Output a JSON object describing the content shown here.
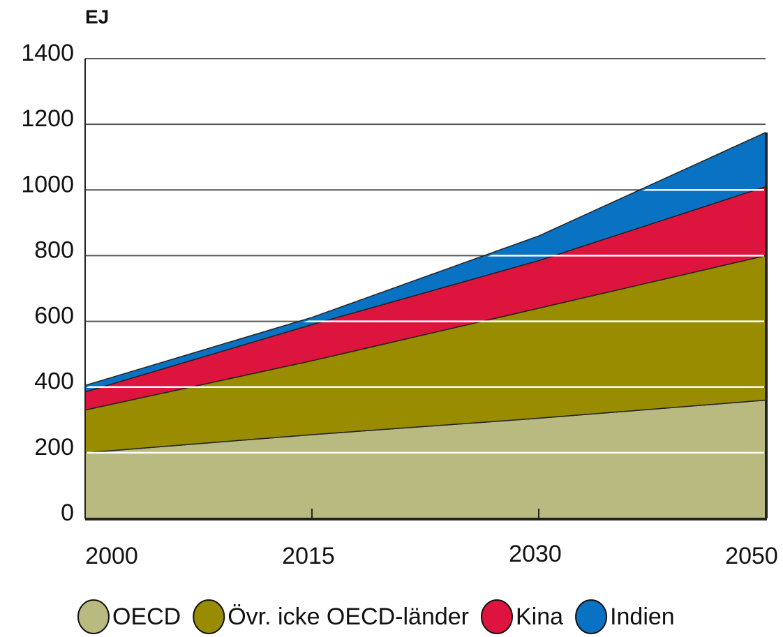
{
  "chart_data": {
    "type": "stacked_area",
    "y_label": "EJ",
    "categories": [
      "2000",
      "2015",
      "2030",
      "2050"
    ],
    "series": [
      {
        "name": "OECD",
        "color": "#b9ba80",
        "values": [
          200,
          255,
          305,
          360
        ]
      },
      {
        "name": "Övr. icke OECD-länder",
        "color": "#998c00",
        "values": [
          130,
          225,
          335,
          440
        ]
      },
      {
        "name": "Kina",
        "color": "#dd143e",
        "values": [
          55,
          110,
          145,
          210
        ]
      },
      {
        "name": "Indien",
        "color": "#0a72c2",
        "values": [
          20,
          22,
          75,
          165
        ]
      }
    ],
    "ylim": [
      0,
      1400
    ],
    "yticks": [
      0,
      200,
      400,
      600,
      800,
      1000,
      1200,
      1400
    ],
    "grid": true,
    "legend": "bottom"
  }
}
